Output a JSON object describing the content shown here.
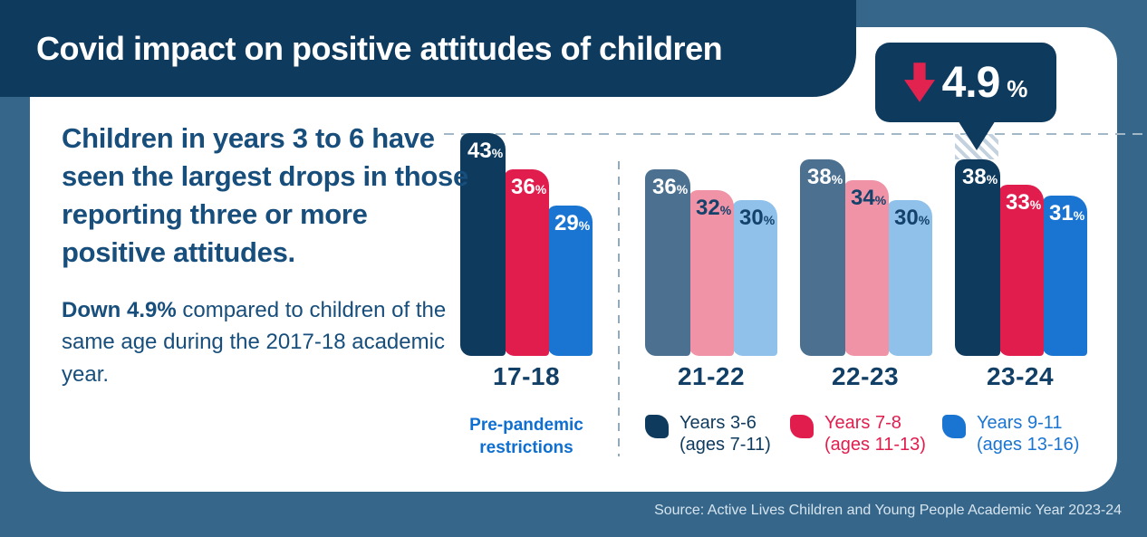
{
  "page": {
    "background": "#36668a",
    "card_color": "#ffffff"
  },
  "header": {
    "title": "Covid impact on positive attitudes of children",
    "background": "#0e3a5e",
    "text_color": "#ffffff"
  },
  "callout": {
    "value": "4.9",
    "unit": "%",
    "direction": "down",
    "background": "#0e3a5e",
    "arrow_color": "#e3234f"
  },
  "intro": {
    "headline": "Children in years 3 to 6 have seen the largest drops in those reporting three or more positive attitudes.",
    "detail_bold": "Down 4.9%",
    "detail_rest": " compared to children of the same age during the 2017-18 academic year.",
    "text_color": "#174e7c"
  },
  "chart_data": {
    "type": "bar",
    "unit": "%",
    "categories": [
      "17-18",
      "21-22",
      "22-23",
      "23-24"
    ],
    "series": [
      {
        "name": "Years 3-6 (ages 7-11)",
        "values": [
          43,
          36,
          38,
          38
        ]
      },
      {
        "name": "Years 7-8 (ages 11-13)",
        "values": [
          36,
          32,
          34,
          33
        ]
      },
      {
        "name": "Years 9-11 (ages 13-16)",
        "values": [
          29,
          30,
          30,
          31
        ]
      }
    ],
    "ylim": [
      0,
      43
    ],
    "grid": false,
    "baseline": {
      "value": 43,
      "style": "dashed",
      "label_lines": [
        "Pre-pandemic",
        "restrictions"
      ],
      "label_color": "#0f6fd0"
    },
    "annotation": {
      "text": "4.9%",
      "direction": "down",
      "category": "23-24",
      "series": "Years 3-6 (ages 7-11)"
    },
    "colors": {
      "emphasized": [
        "#0e3a5e",
        "#e11d4e",
        "#1a75d2"
      ],
      "muted": [
        "#4b7090",
        "#f093a7",
        "#8fc1eb"
      ],
      "emphasized_groups": [
        0,
        3
      ],
      "value_label_emphasized": [
        "#ffffff",
        "#ffffff",
        "#ffffff"
      ],
      "value_label_muted": [
        "#ffffff",
        "#14426b",
        "#14426b"
      ]
    },
    "legend_position": "bottom",
    "legend": [
      {
        "lines": [
          "Years 3-6",
          "(ages 7-11)"
        ],
        "color": "#0e3a5e"
      },
      {
        "lines": [
          "Years 7-8",
          "(ages 11-13)"
        ],
        "color": "#e11d4e"
      },
      {
        "lines": [
          "Years 9-11",
          "(ages 13-16)"
        ],
        "color": "#1a75d2"
      }
    ]
  },
  "source": {
    "text": "Source: Active Lives Children and Young People Academic Year 2023-24",
    "text_color": "#d6e5ef"
  }
}
